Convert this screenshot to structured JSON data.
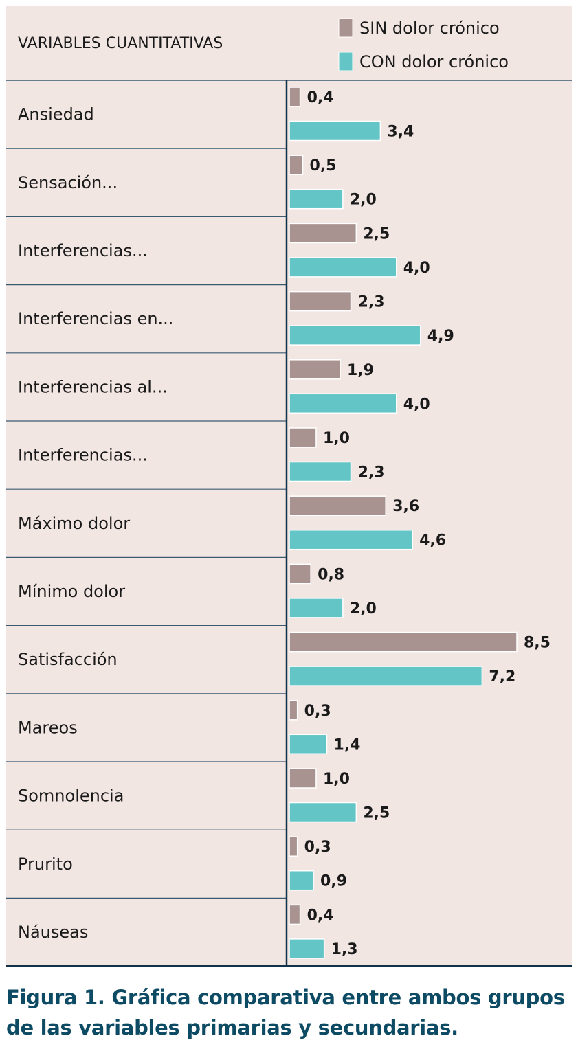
{
  "chart_data": {
    "type": "bar",
    "orientation": "horizontal",
    "header": "VARIABLES CUANTITATIVAS",
    "categories": [
      "Ansiedad",
      "Sensación...",
      "Interferencias...",
      "Interferencias en...",
      "Interferencias al...",
      "Interferencias...",
      "Máximo dolor",
      "Mínimo dolor",
      "Satisfacción",
      "Mareos",
      "Somnolencia",
      "Prurito",
      "Náuseas"
    ],
    "series": [
      {
        "name": "SIN dolor crónico",
        "color": "#a89390",
        "values": [
          0.4,
          0.5,
          2.5,
          2.3,
          1.9,
          1.0,
          3.6,
          0.8,
          8.5,
          0.3,
          1.0,
          0.3,
          0.4
        ],
        "labels": [
          "0,4",
          "0,5",
          "2,5",
          "2,3",
          "1,9",
          "1,0",
          "3,6",
          "0,8",
          "8,5",
          "0,3",
          "1,0",
          "0,3",
          "0,4"
        ]
      },
      {
        "name": "CON dolor crónico",
        "color": "#63c5c5",
        "values": [
          3.4,
          2.0,
          4.0,
          4.9,
          4.0,
          2.3,
          4.6,
          2.0,
          7.2,
          1.4,
          2.5,
          0.9,
          1.3
        ],
        "labels": [
          "3,4",
          "2,0",
          "4,0",
          "4,9",
          "4,0",
          "2,3",
          "4,6",
          "2,0",
          "7,2",
          "1,4",
          "2,5",
          "0,9",
          "1,3"
        ]
      }
    ],
    "xlim": [
      0,
      8.5
    ],
    "grid": false,
    "legend_position": "top-right",
    "colors": {
      "background": "#f2e6e3",
      "separator": "#3a5a72",
      "axis": "#12324a",
      "caption": "#0d4a63"
    }
  },
  "caption": {
    "line1": "Figura 1. Gráfica comparativa entre ambos grupos",
    "line2": "de las variables primarias y secundarias."
  }
}
